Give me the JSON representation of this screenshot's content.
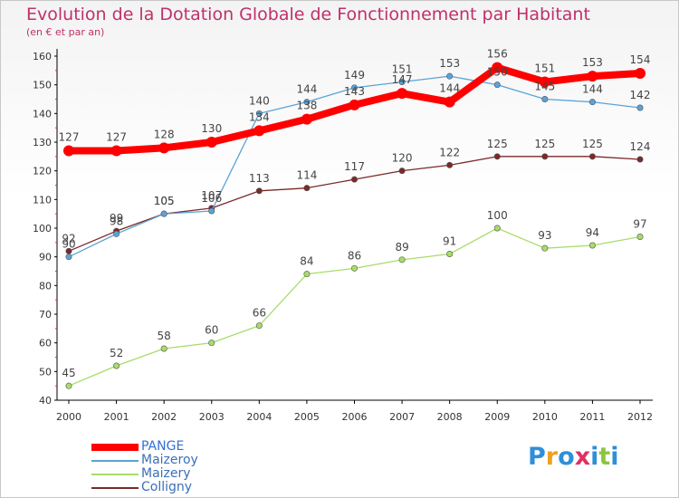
{
  "title": "Evolution de la Dotation Globale de Fonctionnement par Habitant",
  "subtitle": "(en € et par an)",
  "logo": "Proxiti",
  "chart_data": {
    "type": "line",
    "title": "Evolution de la Dotation Globale de Fonctionnement par Habitant",
    "subtitle": "(en € et par an)",
    "xlabel": "",
    "ylabel": "",
    "ylim": [
      40,
      160
    ],
    "y_ticks": [
      40,
      50,
      60,
      70,
      80,
      90,
      100,
      110,
      120,
      130,
      140,
      150,
      160
    ],
    "grid": false,
    "legend_position": "bottom-left",
    "x": [
      "2000",
      "2001",
      "2002",
      "2003",
      "2004",
      "2005",
      "2006",
      "2007",
      "2008",
      "2009",
      "2010",
      "2011",
      "2012"
    ],
    "series": [
      {
        "name": "PANGE",
        "color": "#ff0000",
        "values": [
          127,
          127,
          128,
          130,
          134,
          138,
          143,
          147,
          144,
          156,
          151,
          153,
          154
        ],
        "labels": [
          "127",
          "127",
          "128",
          "130",
          "134",
          "138",
          "143",
          "147",
          "144",
          "156",
          "151",
          "153",
          "154"
        ]
      },
      {
        "name": "Maizeroy",
        "color": "#5ba3d6",
        "values": [
          90,
          98,
          105,
          106,
          140,
          144,
          149,
          151,
          153,
          150,
          145,
          144,
          142
        ],
        "labels": [
          "90",
          "98",
          "105",
          "106",
          "140",
          "144",
          "149",
          "151",
          "153",
          "150",
          "145",
          "144",
          "142"
        ]
      },
      {
        "name": "Maizery",
        "color": "#a8dc6a",
        "values": [
          45,
          52,
          58,
          60,
          66,
          84,
          86,
          89,
          91,
          100,
          93,
          94,
          97
        ],
        "labels": [
          "45",
          "52",
          "58",
          "60",
          "66",
          "84",
          "86",
          "89",
          "91",
          "100",
          "93",
          "94",
          "97"
        ]
      },
      {
        "name": "Colligny",
        "color": "#7a2a2a",
        "values": [
          92,
          99,
          105,
          107,
          113,
          114,
          117,
          120,
          122,
          125,
          125,
          125,
          124
        ],
        "labels": [
          "92",
          "99",
          "105",
          "107",
          "113",
          "114",
          "117",
          "120",
          "122",
          "125",
          "125",
          "125",
          "124"
        ]
      }
    ]
  },
  "colors": {
    "title": "#c0306a",
    "axis": "#000000",
    "label": "#444444"
  },
  "logo_letter_colors": [
    "#2f8fd8",
    "#f0a020",
    "#2f8fd8",
    "#e03060",
    "#2f8fd8",
    "#8cc63f",
    "#2f8fd8"
  ]
}
